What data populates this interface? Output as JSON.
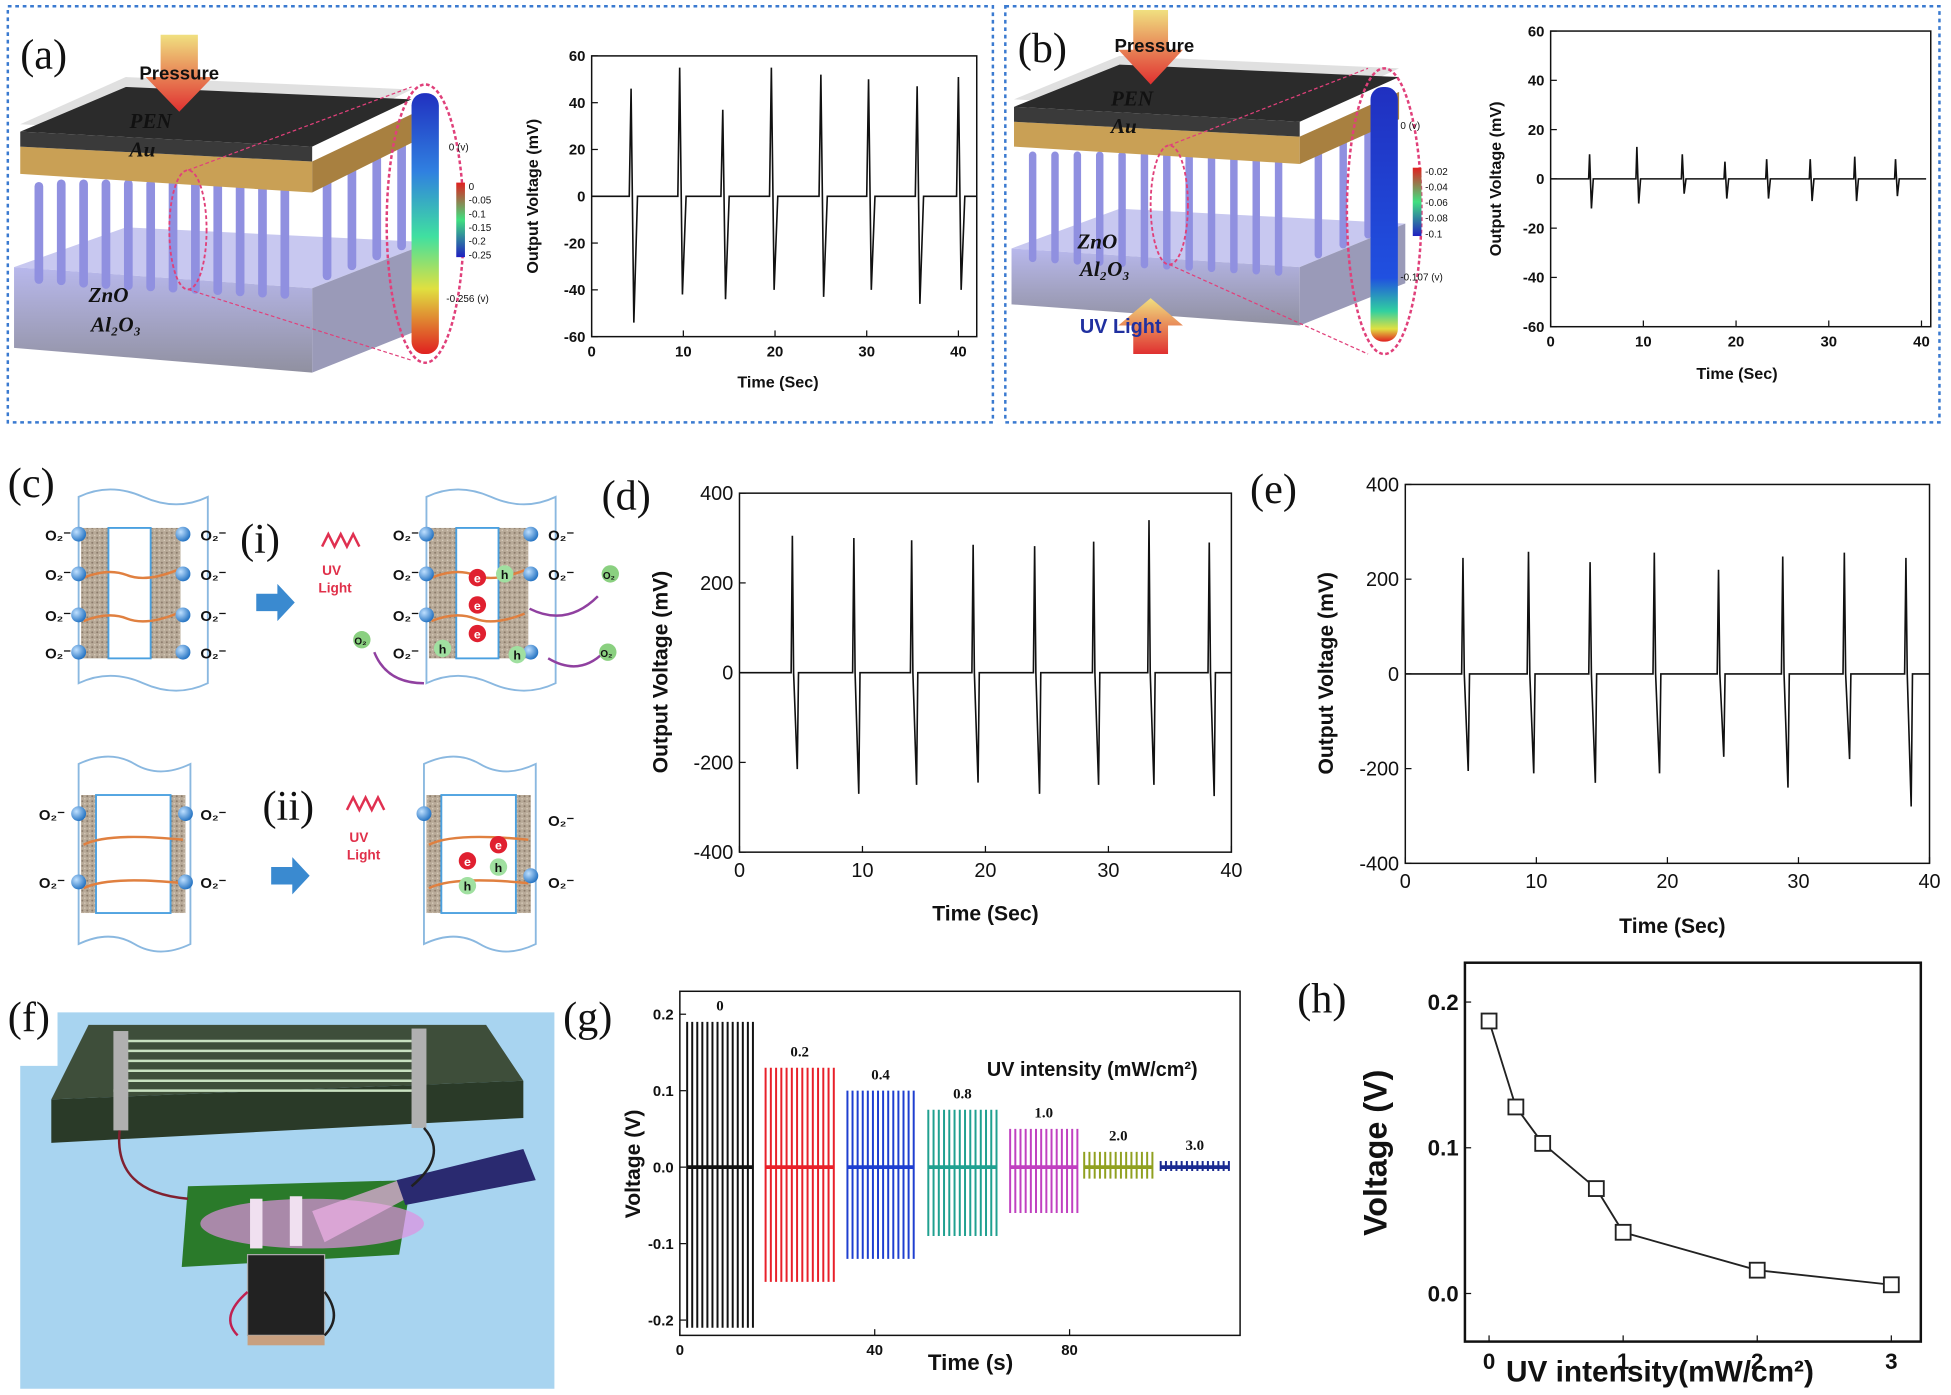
{
  "panels": {
    "a": {
      "label": "(a)",
      "pressure": "Pressure",
      "pen": "PEN",
      "au": "Au",
      "zno": "ZnO",
      "al2o3": "Al₂O₃",
      "colorbar_top": "0 (v)",
      "colorbar_bottom": "-0.256 (v)",
      "colorbar_ticks": [
        "0",
        "-0.05",
        "-0.1",
        "-0.15",
        "-0.2",
        "-0.25"
      ]
    },
    "b": {
      "label": "(b)",
      "pressure": "Pressure",
      "pen": "PEN",
      "au": "Au",
      "zno": "ZnO",
      "al2o3": "Al₂O₃",
      "uv": "UV Light",
      "colorbar_top": "0 (v)",
      "colorbar_bottom": "-0.107 (v)",
      "colorbar_ticks": [
        "-0.02",
        "-0.04",
        "-0.06",
        "-0.08",
        "-0.1"
      ]
    },
    "c": {
      "label": "(c)",
      "i": "(i)",
      "ii": "(ii)",
      "uv": [
        "UV",
        "Light"
      ],
      "o2_ion": "O₂⁻",
      "o2": "O₂",
      "e": "e",
      "h": "h"
    },
    "d": {
      "label": "(d)"
    },
    "e": {
      "label": "(e)"
    },
    "f": {
      "label": "(f)"
    },
    "g": {
      "label": "(g)"
    },
    "h": {
      "label": "(h)"
    }
  },
  "chart_data": [
    {
      "type": "line",
      "xlabel": "Time (Sec)",
      "ylabel": "Output Voltage (mV)",
      "color": "#111111",
      "xlim": [
        0,
        42
      ],
      "ylim": [
        -60,
        60
      ],
      "xticks": [
        0,
        10,
        20,
        30,
        40
      ],
      "yticks": [
        -60,
        -40,
        -20,
        0,
        20,
        40,
        60
      ],
      "x": [
        0,
        4.1,
        4.3,
        4.6,
        5.0,
        9.4,
        9.6,
        9.9,
        10.3,
        14.1,
        14.3,
        14.6,
        15.0,
        19.4,
        19.6,
        19.9,
        20.3,
        24.8,
        25.0,
        25.3,
        25.7,
        30.0,
        30.2,
        30.5,
        30.9,
        35.3,
        35.5,
        35.8,
        36.2,
        39.8,
        40.0,
        40.3,
        40.7,
        42
      ],
      "values": [
        0,
        0,
        46,
        -54,
        0,
        0,
        55,
        -42,
        0,
        0,
        37,
        -44,
        0,
        0,
        55,
        -40,
        0,
        0,
        52,
        -43,
        0,
        0,
        50,
        -40,
        0,
        0,
        47,
        -46,
        0,
        0,
        51,
        -40,
        0,
        0
      ]
    },
    {
      "type": "line",
      "xlabel": "Time (Sec)",
      "ylabel": "Output Voltage (mV)",
      "color": "#111111",
      "xlim": [
        0,
        41
      ],
      "ylim": [
        -60,
        60
      ],
      "xticks": [
        0,
        10,
        20,
        30,
        40
      ],
      "yticks": [
        -60,
        -40,
        -20,
        0,
        20,
        40,
        60
      ],
      "x": [
        0,
        4.1,
        4.2,
        4.4,
        4.6,
        9.2,
        9.3,
        9.5,
        9.7,
        14.1,
        14.2,
        14.4,
        14.6,
        18.7,
        18.8,
        19.0,
        19.2,
        23.2,
        23.3,
        23.5,
        23.7,
        27.9,
        28.0,
        28.2,
        28.4,
        32.7,
        32.8,
        33.0,
        33.2,
        37.1,
        37.2,
        37.4,
        37.6,
        40.5
      ],
      "values": [
        0,
        0,
        10,
        -12,
        0,
        0,
        13,
        -10,
        0,
        0,
        10,
        -6,
        0,
        0,
        7,
        -8,
        0,
        0,
        8,
        -8,
        0,
        0,
        8,
        -9,
        0,
        0,
        9,
        -9,
        0,
        0,
        8,
        -7,
        0,
        0
      ]
    },
    {
      "type": "line",
      "xlabel": "Time (Sec)",
      "ylabel": "Output Voltage (mV)",
      "color": "#111111",
      "xlim": [
        0,
        40
      ],
      "ylim": [
        -400,
        400
      ],
      "xticks": [
        0,
        10,
        20,
        30,
        40
      ],
      "yticks": [
        -400,
        -200,
        0,
        200,
        400
      ],
      "x": [
        0,
        4.2,
        4.3,
        4.4,
        4.7,
        4.8,
        9.2,
        9.3,
        9.4,
        9.7,
        9.8,
        13.9,
        14.0,
        14.1,
        14.4,
        14.5,
        18.9,
        19.0,
        19.1,
        19.4,
        19.5,
        23.9,
        24.0,
        24.1,
        24.4,
        24.5,
        28.7,
        28.8,
        28.9,
        29.2,
        29.3,
        33.2,
        33.3,
        33.4,
        33.7,
        33.8,
        38.1,
        38.2,
        38.3,
        38.6,
        38.7,
        40
      ],
      "values": [
        0,
        0,
        305,
        0,
        -215,
        0,
        0,
        300,
        0,
        -270,
        0,
        0,
        295,
        0,
        -250,
        0,
        0,
        285,
        0,
        -245,
        0,
        0,
        282,
        0,
        -270,
        0,
        0,
        292,
        0,
        -250,
        0,
        0,
        340,
        0,
        -250,
        0,
        0,
        290,
        0,
        -275,
        0,
        0
      ]
    },
    {
      "type": "line",
      "xlabel": "Time (Sec)",
      "ylabel": "Output Voltage (mV)",
      "color": "#111111",
      "xlim": [
        0,
        40
      ],
      "ylim": [
        -400,
        400
      ],
      "xticks": [
        0,
        10,
        20,
        30,
        40
      ],
      "yticks": [
        -400,
        -200,
        0,
        200,
        400
      ],
      "x": [
        0,
        4.3,
        4.4,
        4.5,
        4.8,
        4.9,
        9.3,
        9.4,
        9.5,
        9.8,
        9.9,
        14.0,
        14.1,
        14.2,
        14.5,
        14.6,
        18.9,
        19.0,
        19.1,
        19.4,
        19.5,
        23.8,
        23.9,
        24.0,
        24.3,
        24.4,
        28.7,
        28.8,
        28.9,
        29.2,
        29.3,
        33.4,
        33.5,
        33.6,
        33.9,
        34.0,
        38.1,
        38.2,
        38.3,
        38.6,
        38.7,
        40
      ],
      "values": [
        0,
        0,
        245,
        0,
        -205,
        0,
        0,
        258,
        0,
        -210,
        0,
        0,
        236,
        0,
        -230,
        0,
        0,
        256,
        0,
        -210,
        0,
        0,
        220,
        0,
        -175,
        0,
        0,
        248,
        0,
        -240,
        0,
        0,
        256,
        0,
        -180,
        0,
        0,
        245,
        0,
        -280,
        0,
        0
      ]
    },
    {
      "type": "spike",
      "title": "UV intensity (mW/cm²)",
      "xlabel": "Time (s)",
      "ylabel": "Voltage (V)",
      "xlim": [
        0,
        115
      ],
      "ylim": [
        -0.22,
        0.23
      ],
      "xticks": [
        0,
        40,
        80
      ],
      "yticks": [
        -0.2,
        -0.1,
        {
          "value": 0,
          "label": "0.0"
        },
        0.1,
        0.2
      ],
      "series": [
        {
          "name": "0",
          "color": "#111111",
          "x": [
            1.5,
            15
          ],
          "values": [
            0.19,
            -0.21
          ]
        },
        {
          "name": "0.2",
          "color": "#e8202a",
          "x": [
            17.6,
            31.6
          ],
          "values": [
            0.13,
            -0.15
          ]
        },
        {
          "name": "0.4",
          "color": "#1f3fd0",
          "x": [
            34.4,
            48
          ],
          "values": [
            0.1,
            -0.12
          ]
        },
        {
          "name": "0.8",
          "color": "#20a090",
          "x": [
            51,
            65
          ],
          "values": [
            0.075,
            -0.09
          ]
        },
        {
          "name": "1.0",
          "color": "#c040c0",
          "x": [
            67.8,
            81.6
          ],
          "values": [
            0.05,
            -0.06
          ]
        },
        {
          "name": "2.0",
          "color": "#90a020",
          "x": [
            83,
            97
          ],
          "values": [
            0.02,
            -0.015
          ]
        },
        {
          "name": "3.0",
          "color": "#1a2a90",
          "x": [
            98.7,
            112.7
          ],
          "values": [
            0.008,
            -0.005
          ]
        }
      ]
    },
    {
      "type": "line",
      "marker": "square",
      "xlabel": "UV intensity(mW/cm²)",
      "ylabel": "Voltage (V)",
      "color": "#222222",
      "xlim": [
        -0.18,
        3.22
      ],
      "ylim": [
        -0.033,
        0.227
      ],
      "xticks": [
        0,
        1,
        2,
        3
      ],
      "yticks": [
        {
          "value": 0,
          "label": "0.0"
        },
        0.1,
        0.2
      ],
      "x": [
        0,
        0.2,
        0.4,
        0.8,
        1,
        2,
        3
      ],
      "values": [
        0.187,
        0.128,
        0.103,
        0.072,
        0.042,
        0.016,
        0.006
      ]
    }
  ]
}
